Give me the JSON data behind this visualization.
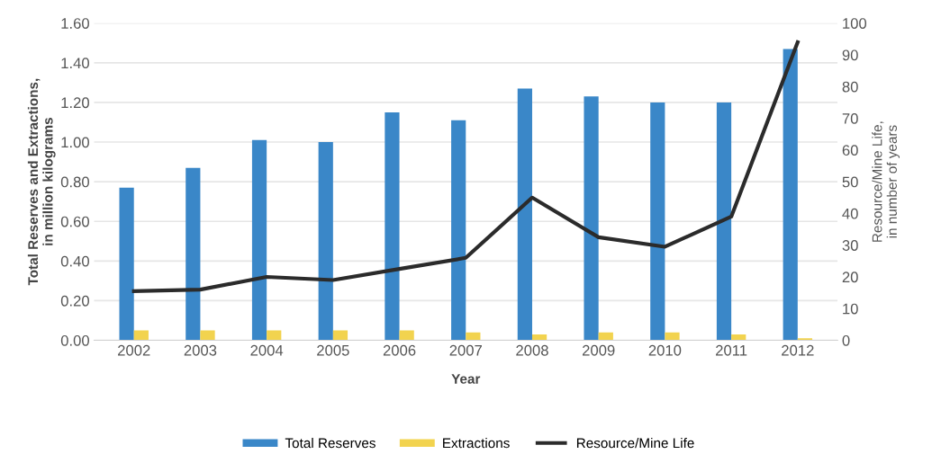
{
  "chart_data": {
    "type": "bar",
    "xlabel": "Year",
    "ylabel": "Total Reserves and Extractions,\nin million kilograms",
    "y2label": "Resource/Mine Life,\nin number of years",
    "categories": [
      "2002",
      "2003",
      "2004",
      "2005",
      "2006",
      "2007",
      "2008",
      "2009",
      "2010",
      "2011",
      "2012"
    ],
    "series": [
      {
        "name": "Total Reserves",
        "color": "#3a87c8",
        "values": [
          0.77,
          0.87,
          1.01,
          1.0,
          1.15,
          1.11,
          1.27,
          1.23,
          1.2,
          1.2,
          1.47
        ]
      },
      {
        "name": "Extractions",
        "color": "#f2d34f",
        "values": [
          0.05,
          0.05,
          0.05,
          0.05,
          0.05,
          0.04,
          0.03,
          0.04,
          0.04,
          0.03,
          0.01
        ]
      },
      {
        "name": "Resource/Mine Life",
        "type": "line",
        "axis": "y2",
        "color": "#2b2b2b",
        "values": [
          15.5,
          16,
          20,
          19,
          22.5,
          26,
          45,
          32.5,
          29.5,
          39,
          94
        ]
      }
    ],
    "ylim": [
      0,
      1.6
    ],
    "yticks": [
      {
        "value": 0,
        "label": "0.00"
      },
      {
        "value": 0.2,
        "label": "0.20"
      },
      {
        "value": 0.4,
        "label": "0.40"
      },
      {
        "value": 0.6,
        "label": "0.60"
      },
      {
        "value": 0.8,
        "label": "0.80"
      },
      {
        "value": 1.0,
        "label": "1.00"
      },
      {
        "value": 1.2,
        "label": "1.20"
      },
      {
        "value": 1.4,
        "label": "1.40"
      },
      {
        "value": 1.6,
        "label": "1.60"
      }
    ],
    "y2lim": [
      0,
      100
    ],
    "y2ticks": [
      0,
      10,
      20,
      30,
      40,
      50,
      60,
      70,
      80,
      90,
      100
    ],
    "grid": "y",
    "legend": "bottom",
    "marker": "none"
  }
}
